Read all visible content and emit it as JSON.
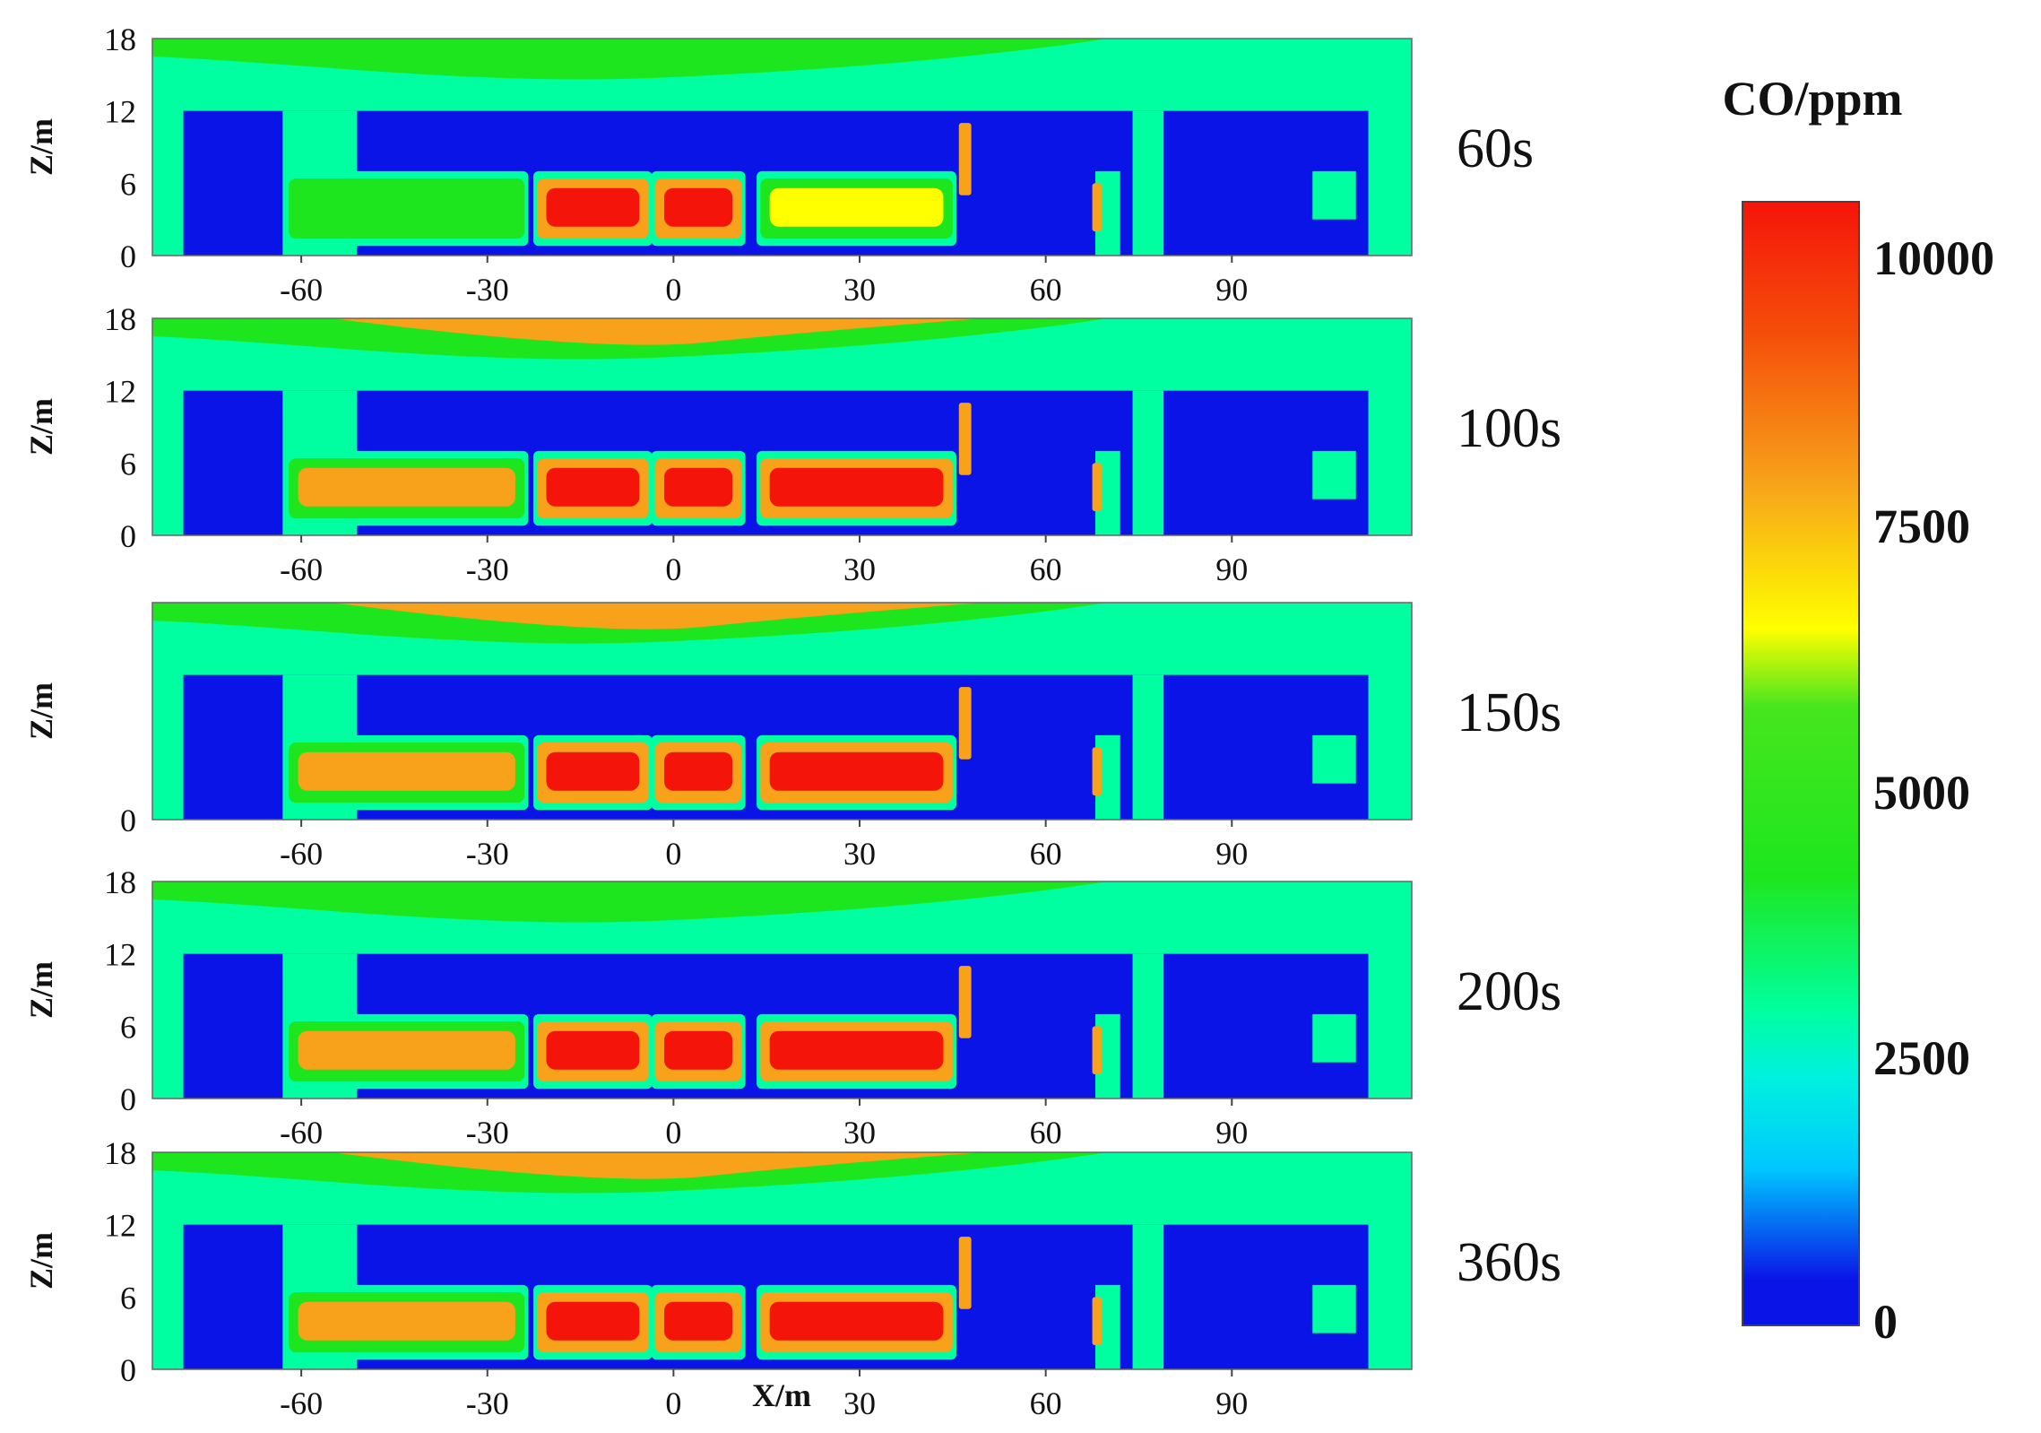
{
  "chart_data": {
    "type": "heatmap",
    "colorbar": {
      "title": "CO/ppm",
      "ticks": [
        "10000",
        "7500",
        "5000",
        "2500",
        "0"
      ],
      "range": [
        0,
        10000
      ],
      "colors": {
        "0": "#0a14e6",
        "1250": "#00ffff",
        "2500": "#00ffa0",
        "5000": "#1ee61e",
        "6250": "#ffff00",
        "7500": "#f7a21a",
        "10000": "#f5140a"
      }
    },
    "xlabel": "X/m",
    "ylabel": "Z/m",
    "xlim": [
      -84,
      119
    ],
    "ylim": [
      0,
      18
    ],
    "x_ticks": [
      "-60",
      "-30",
      "0",
      "30",
      "60",
      "90"
    ],
    "y_ticks": [
      "0",
      "6",
      "12",
      "18"
    ],
    "panels": [
      {
        "time": "60s",
        "ceiling_level": 5500
      },
      {
        "time": "100s",
        "ceiling_level": 7000
      },
      {
        "time": "150s",
        "ceiling_level": 7500,
        "y_ticks": [
          "0"
        ]
      },
      {
        "time": "200s",
        "ceiling_level": 5000
      },
      {
        "time": "360s",
        "ceiling_level": 7500
      }
    ]
  }
}
